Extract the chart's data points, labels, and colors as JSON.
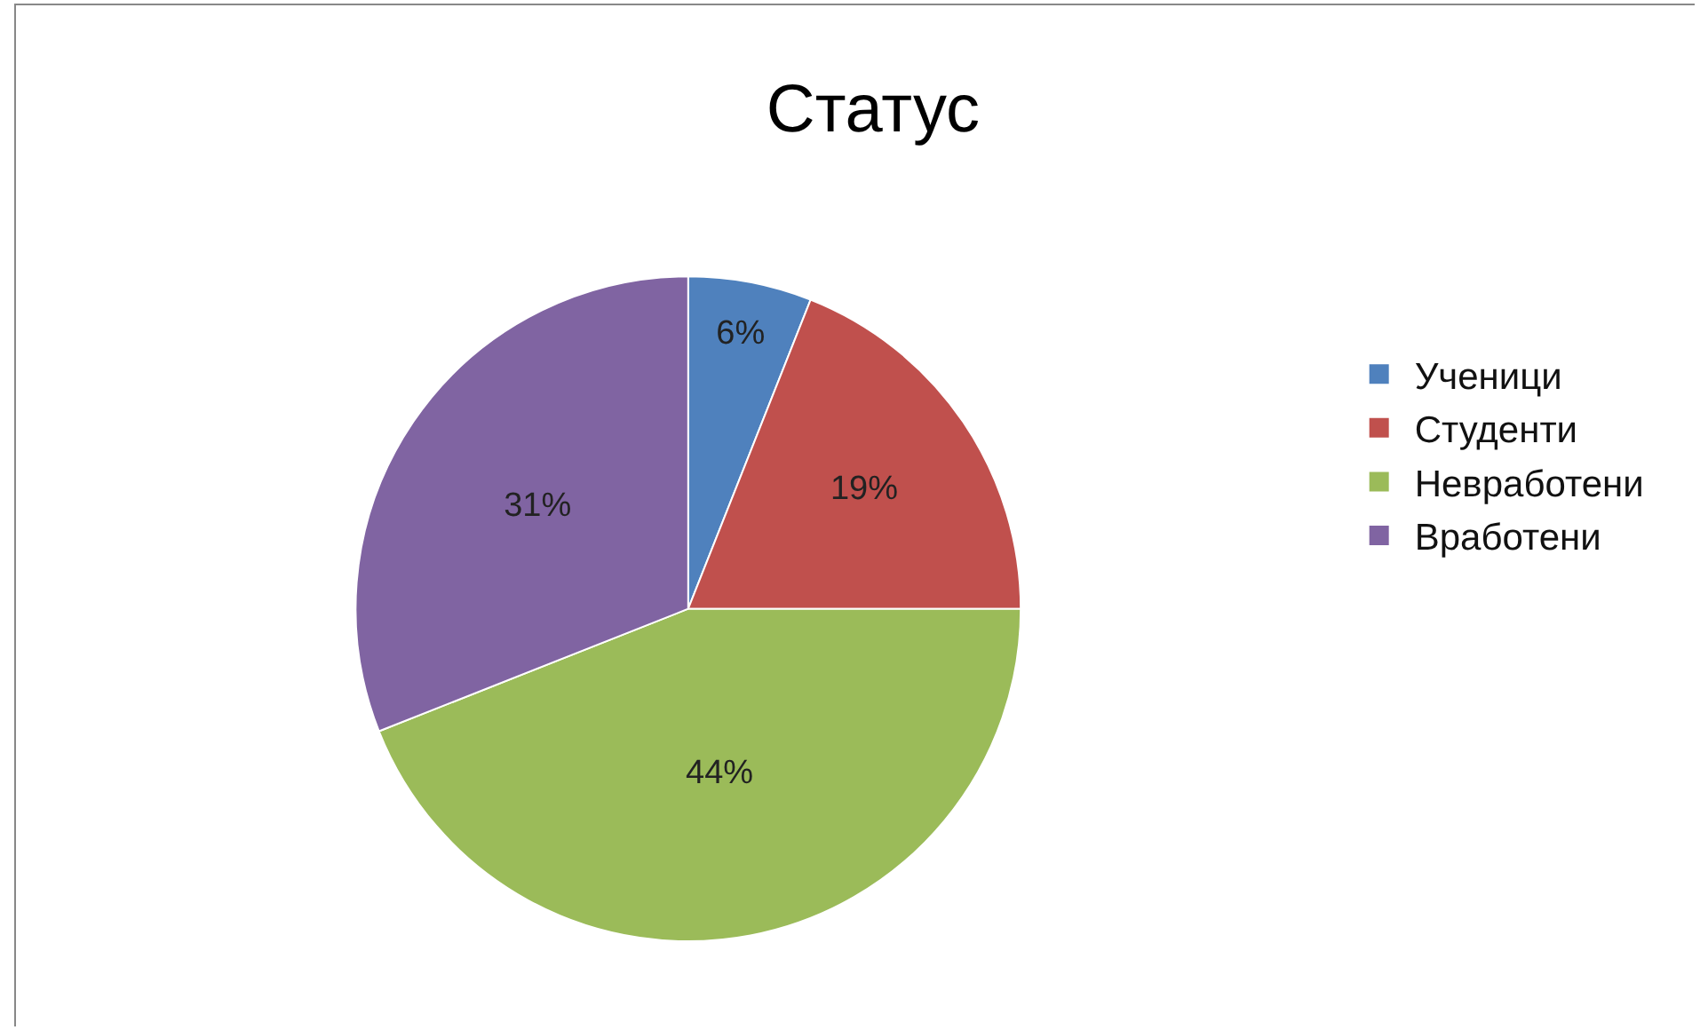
{
  "chart_data": {
    "type": "pie",
    "title": "Статус",
    "categories": [
      "Ученици",
      "Студенти",
      "Невработени",
      "Вработени"
    ],
    "values": [
      6,
      19,
      44,
      31
    ],
    "colors": [
      "#4f81bd",
      "#c0504d",
      "#9bbb59",
      "#8064a2"
    ],
    "value_labels": [
      "6%",
      "19%",
      "44%",
      "31%"
    ],
    "legend": "right"
  }
}
